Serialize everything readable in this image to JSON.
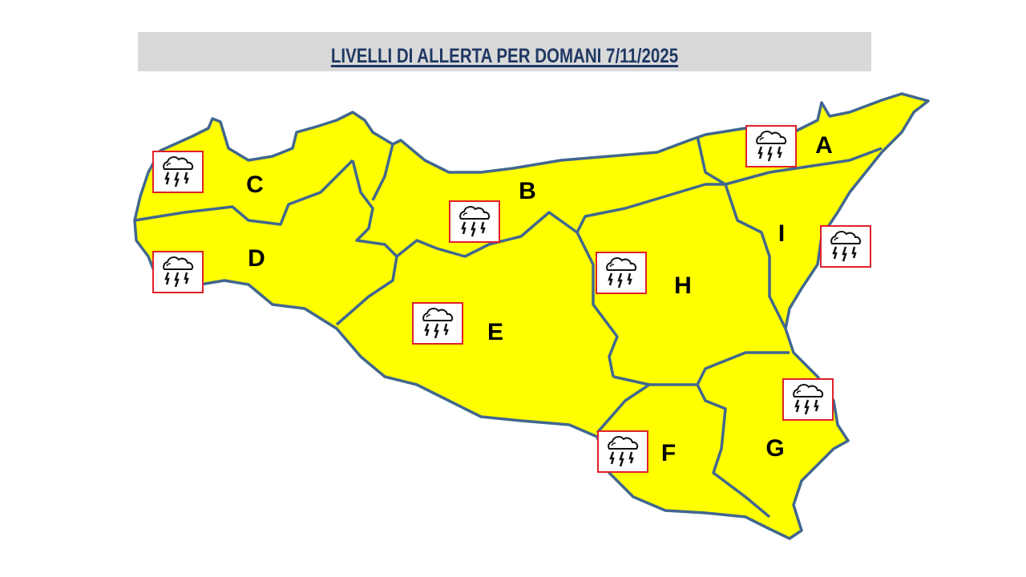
{
  "title": "LIVELLI DI ALLERTA PER DOMANI 7/11/2025",
  "colors": {
    "alert_fill": "#ffff00",
    "border": "#41678f",
    "title": "#1f3864",
    "icon_frame": "#e0202a",
    "title_bg": "#d9d9d9"
  },
  "alert_level": "yellow",
  "zones": [
    {
      "id": "A",
      "label": "A",
      "icon": "thunderstorm-icon"
    },
    {
      "id": "B",
      "label": "B",
      "icon": "thunderstorm-icon"
    },
    {
      "id": "C",
      "label": "C",
      "icon": "thunderstorm-icon"
    },
    {
      "id": "D",
      "label": "D",
      "icon": "thunderstorm-icon"
    },
    {
      "id": "E",
      "label": "E",
      "icon": "thunderstorm-icon"
    },
    {
      "id": "F",
      "label": "F",
      "icon": "thunderstorm-icon"
    },
    {
      "id": "G",
      "label": "G",
      "icon": "thunderstorm-icon"
    },
    {
      "id": "H",
      "label": "H",
      "icon": "thunderstorm-icon"
    },
    {
      "id": "I",
      "label": "I",
      "icon": "thunderstorm-icon"
    }
  ]
}
